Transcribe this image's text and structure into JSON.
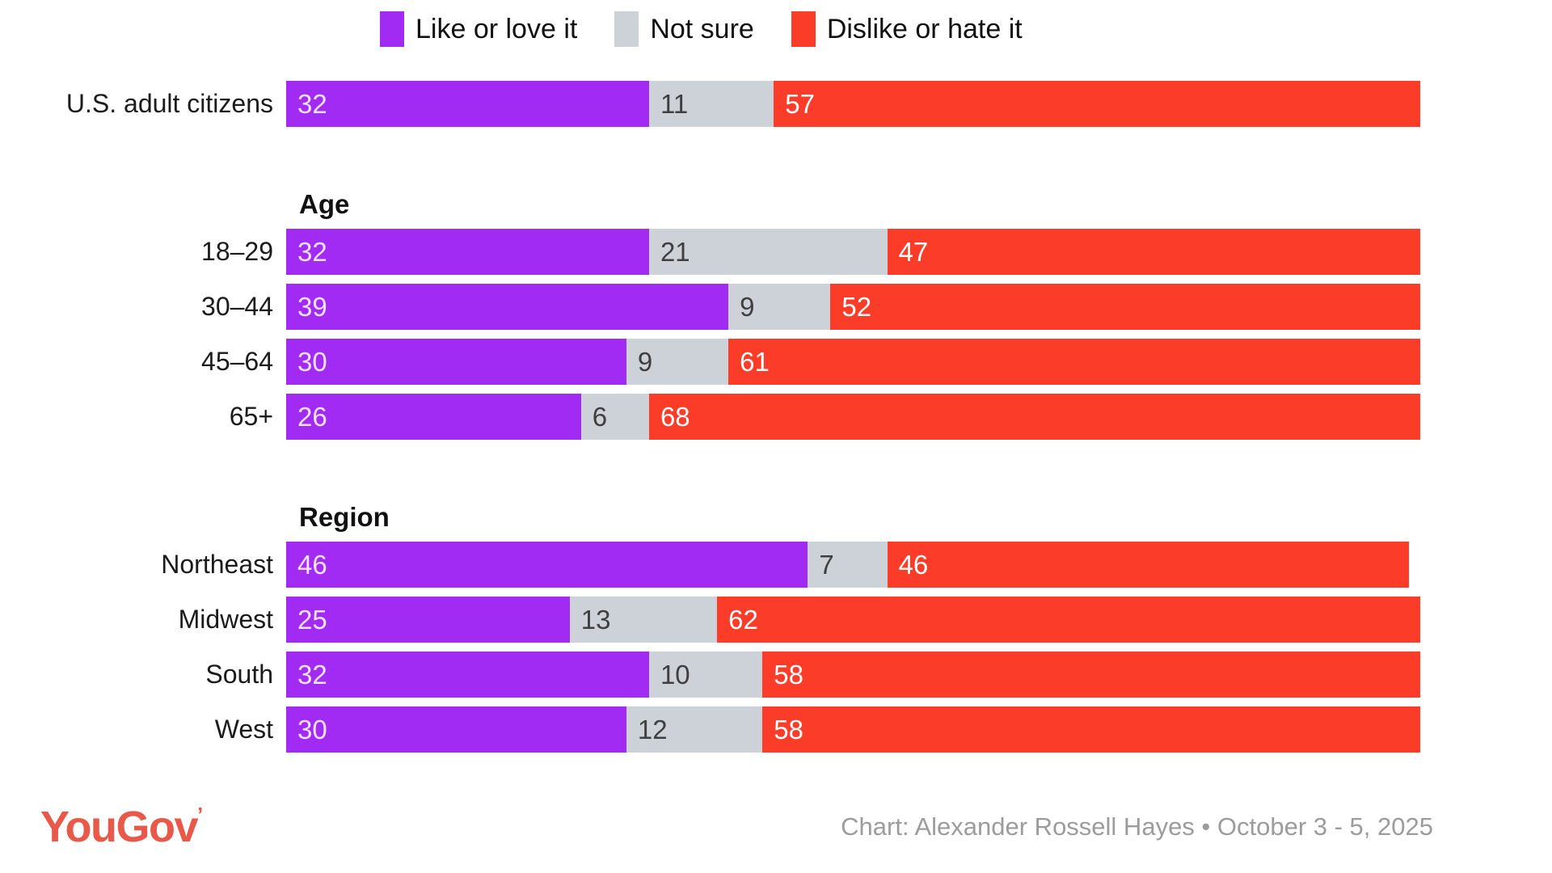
{
  "legend": {
    "items": [
      {
        "label": "Like or love it",
        "color": "#a22bf3"
      },
      {
        "label": "Not sure",
        "color": "#cdd1d8"
      },
      {
        "label": "Dislike or hate it",
        "color": "#fa3c28"
      }
    ]
  },
  "chart_data": {
    "type": "bar",
    "orientation": "horizontal",
    "stacked": true,
    "unit": "percent",
    "xlim": [
      0,
      100
    ],
    "series_names": [
      "Like or love it",
      "Not sure",
      "Dislike or hate it"
    ],
    "series_colors": [
      "#a22bf3",
      "#cdd1d8",
      "#fa3c28"
    ],
    "groups": [
      {
        "header": "",
        "rows": [
          {
            "label": "U.S. adult citizens",
            "values": [
              32,
              11,
              57
            ]
          }
        ]
      },
      {
        "header": "Age",
        "rows": [
          {
            "label": "18–29",
            "values": [
              32,
              21,
              47
            ]
          },
          {
            "label": "30–44",
            "values": [
              39,
              9,
              52
            ]
          },
          {
            "label": "45–64",
            "values": [
              30,
              9,
              61
            ]
          },
          {
            "label": "65+",
            "values": [
              26,
              6,
              68
            ]
          }
        ]
      },
      {
        "header": "Region",
        "rows": [
          {
            "label": "Northeast",
            "values": [
              46,
              7,
              46
            ]
          },
          {
            "label": "Midwest",
            "values": [
              25,
              13,
              62
            ]
          },
          {
            "label": "South",
            "values": [
              32,
              10,
              58
            ]
          },
          {
            "label": "West",
            "values": [
              30,
              12,
              58
            ]
          }
        ]
      }
    ]
  },
  "footer": {
    "logo_text": "YouGov",
    "logo_mark": "’",
    "credit": "Chart: Alexander Rossell Hayes • October 3 - 5, 2025"
  },
  "colors": {
    "like_or_love": "#a22bf3",
    "not_sure": "#cdd1d8",
    "dislike_or_hate": "#fa3c28",
    "logo_red": "#e8594a",
    "credit_gray": "#9c9c9c",
    "text": "#1b1b1b"
  }
}
